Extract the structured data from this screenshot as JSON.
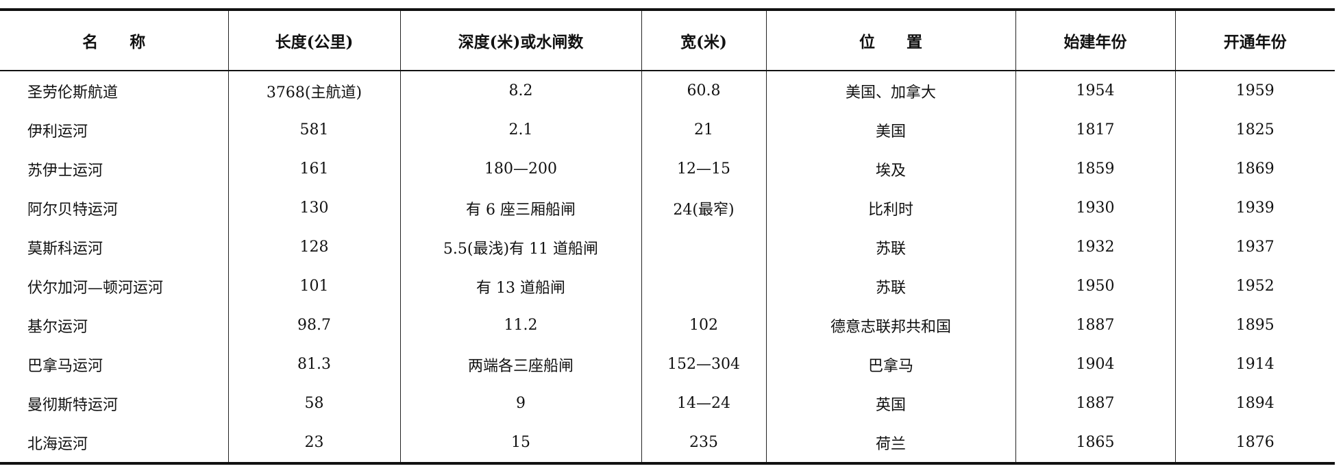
{
  "table": {
    "header": [
      "名　　称",
      "长度(公里)",
      "深度(米)或水闸数",
      "宽(米)",
      "位　　置",
      "始建年份",
      "开通年份"
    ],
    "rows": [
      [
        "圣劳伦斯航道",
        "3768(主航道)",
        "8.2",
        "60.8",
        "美国、加拿大",
        "1954",
        "1959"
      ],
      [
        "伊利运河",
        "581",
        "2.1",
        "21",
        "美国",
        "1817",
        "1825"
      ],
      [
        "苏伊士运河",
        "161",
        "180—200",
        "12—15",
        "埃及",
        "1859",
        "1869"
      ],
      [
        "阿尔贝特运河",
        "130",
        "有 6 座三厢船闸",
        "24(最窄)",
        "比利时",
        "1930",
        "1939"
      ],
      [
        "莫斯科运河",
        "128",
        "5.5(最浅)有 11 道船闸",
        null,
        "苏联",
        "1932",
        "1937"
      ],
      [
        "伏尔加河—顿河运河",
        "101",
        "有 13 道船闸",
        null,
        "苏联",
        "1950",
        "1952"
      ],
      [
        "基尔运河",
        "98.7",
        "11.2",
        "102",
        "德意志联邦共和国",
        "1887",
        "1895"
      ],
      [
        "巴拿马运河",
        "81.3",
        "两端各三座船闸",
        "152—304",
        "巴拿马",
        "1904",
        "1914"
      ],
      [
        "曼彻斯特运河",
        "58",
        "9",
        "14—24",
        "英国",
        "1887",
        "1894"
      ],
      [
        "北海运河",
        "23",
        "15",
        "235",
        "荷兰",
        "1865",
        "1876"
      ]
    ]
  }
}
